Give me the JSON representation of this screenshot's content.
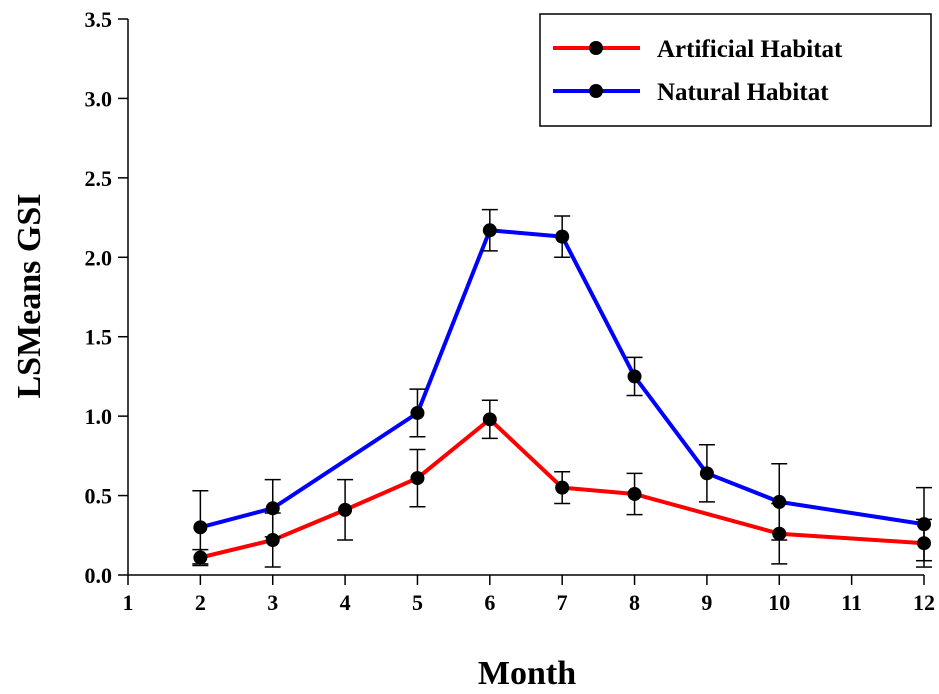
{
  "chart_data": {
    "type": "line",
    "title": "",
    "xlabel": "Month",
    "ylabel": "LSMeans GSI",
    "xlim": [
      1,
      12
    ],
    "ylim": [
      0,
      3.5
    ],
    "x_ticks": [
      "1",
      "2",
      "3",
      "4",
      "5",
      "6",
      "7",
      "8",
      "9",
      "10",
      "11",
      "12"
    ],
    "y_ticks": [
      "0.0",
      "0.5",
      "1.0",
      "1.5",
      "2.0",
      "2.5",
      "3.0",
      "3.5"
    ],
    "x_tick_values": [
      1,
      2,
      3,
      4,
      5,
      6,
      7,
      8,
      9,
      10,
      11,
      12
    ],
    "y_tick_values": [
      0,
      0.5,
      1.0,
      1.5,
      2.0,
      2.5,
      3.0,
      3.5
    ],
    "grid": false,
    "legend_position": "top-right",
    "series": [
      {
        "name": "Artificial Habitat",
        "color": "#ff0000",
        "points": [
          {
            "x": 2,
            "y": 0.11,
            "err": 0.05
          },
          {
            "x": 3,
            "y": 0.22,
            "err": 0.17
          },
          {
            "x": 4,
            "y": 0.41,
            "err": 0.19
          },
          {
            "x": 5,
            "y": 0.61,
            "err": 0.18
          },
          {
            "x": 6,
            "y": 0.98,
            "err": 0.12
          },
          {
            "x": 7,
            "y": 0.55,
            "err": 0.1
          },
          {
            "x": 8,
            "y": 0.51,
            "err": 0.13
          },
          {
            "x": 10,
            "y": 0.26,
            "err": 0.19
          },
          {
            "x": 12,
            "y": 0.2,
            "err": 0.15
          }
        ]
      },
      {
        "name": "Natural Habitat",
        "color": "#0000ff",
        "points": [
          {
            "x": 2,
            "y": 0.3,
            "err": 0.23
          },
          {
            "x": 3,
            "y": 0.42,
            "err": 0.18
          },
          {
            "x": 5,
            "y": 1.02,
            "err": 0.15
          },
          {
            "x": 6,
            "y": 2.17,
            "err": 0.13
          },
          {
            "x": 7,
            "y": 2.13,
            "err": 0.13
          },
          {
            "x": 8,
            "y": 1.25,
            "err": 0.12
          },
          {
            "x": 9,
            "y": 0.64,
            "err": 0.18
          },
          {
            "x": 10,
            "y": 0.46,
            "err": 0.24
          },
          {
            "x": 12,
            "y": 0.32,
            "err": 0.23
          }
        ]
      }
    ]
  }
}
